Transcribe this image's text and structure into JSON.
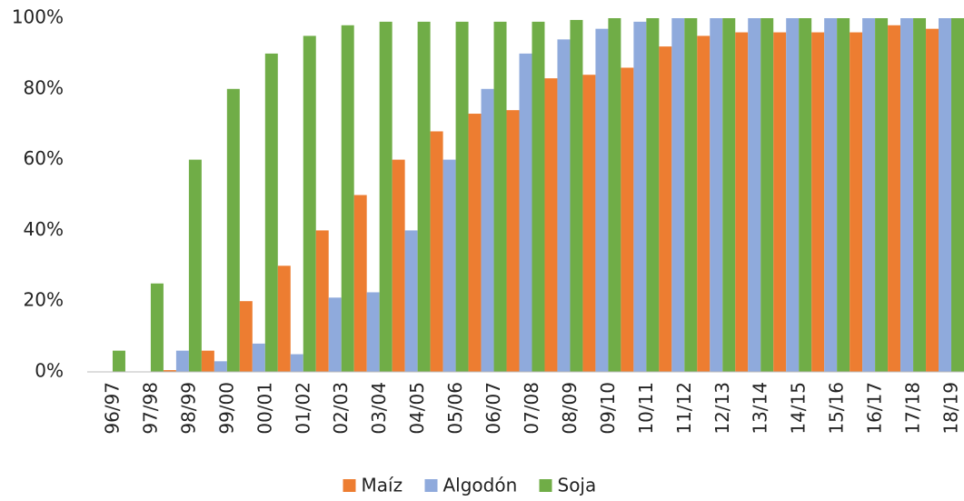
{
  "chart_data": {
    "type": "bar",
    "categories": [
      "96/97",
      "97/98",
      "98/99",
      "99/00",
      "00/01",
      "01/02",
      "02/03",
      "03/04",
      "04/05",
      "05/06",
      "06/07",
      "07/08",
      "08/09",
      "09/10",
      "10/11",
      "11/12",
      "12/13",
      "13/14",
      "14/15",
      "15/16",
      "16/17",
      "17/18",
      "18/19"
    ],
    "series": [
      {
        "name": "Maíz",
        "color": "#ed7d31",
        "values": [
          0,
          0,
          0.5,
          6,
          20,
          30,
          40,
          50,
          60,
          68,
          73,
          74,
          83,
          84,
          86,
          92,
          95,
          96,
          96,
          96,
          96,
          98,
          97
        ]
      },
      {
        "name": "Algodón",
        "color": "#8faadc",
        "values": [
          0,
          0,
          6,
          3,
          8,
          5,
          21,
          22.5,
          40,
          60,
          80,
          90,
          94,
          97,
          99,
          100,
          100,
          100,
          100,
          100,
          100,
          100,
          100
        ]
      },
      {
        "name": "Soja",
        "color": "#70ad47",
        "values": [
          6,
          25,
          60,
          80,
          90,
          95,
          98,
          99,
          99,
          99,
          99,
          99,
          99.5,
          100,
          100,
          100,
          100,
          100,
          100,
          100,
          100,
          100,
          100
        ]
      }
    ],
    "ylim": [
      0,
      100
    ],
    "yticks": [
      {
        "value": 0,
        "label": "0%"
      },
      {
        "value": 20,
        "label": "20%"
      },
      {
        "value": 40,
        "label": "40%"
      },
      {
        "value": 60,
        "label": "60%"
      },
      {
        "value": 80,
        "label": "80%"
      },
      {
        "value": 100,
        "label": "100%"
      }
    ],
    "legend": "bottom"
  }
}
